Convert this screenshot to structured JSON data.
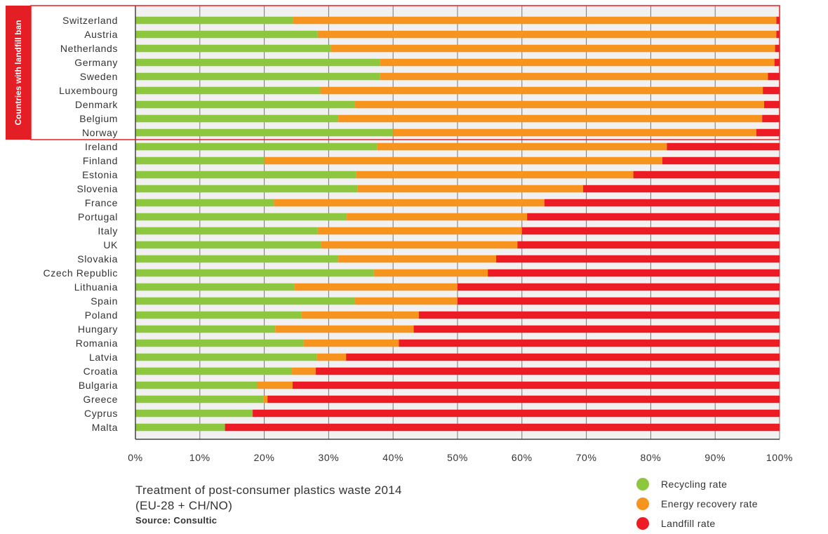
{
  "chart_data": {
    "type": "bar",
    "orientation": "horizontal",
    "stacked": true,
    "title": "Treatment of post-consumer plastics waste 2014",
    "subtitle": "(EU-28 + CH/NO)",
    "source": "Source: Consultic",
    "group_label": "Countries with landfill ban",
    "group_size": 9,
    "xlim": [
      0,
      100
    ],
    "x_ticks": [
      "0%",
      "10%",
      "20%",
      "30%",
      "40%",
      "50%",
      "60%",
      "70%",
      "80%",
      "90%",
      "100%"
    ],
    "grid": true,
    "legend_position": "bottom-right",
    "categories": [
      "Switzerland",
      "Austria",
      "Netherlands",
      "Germany",
      "Sweden",
      "Luxembourg",
      "Denmark",
      "Belgium",
      "Norway",
      "Ireland",
      "Finland",
      "Estonia",
      "Slovenia",
      "France",
      "Portugal",
      "Italy",
      "UK",
      "Slovakia",
      "Czech Republic",
      "Lithuania",
      "Spain",
      "Poland",
      "Hungary",
      "Romania",
      "Latvia",
      "Croatia",
      "Bulgaria",
      "Greece",
      "Cyprus",
      "Malta"
    ],
    "series": [
      {
        "name": "Recycling rate",
        "color": "#8dc63f",
        "values": [
          24.5,
          28.3,
          30.3,
          38,
          38,
          28.7,
          34,
          31.5,
          40,
          37.5,
          20,
          34.3,
          34.5,
          21.5,
          32.8,
          28.3,
          28.8,
          31.5,
          37,
          24.7,
          34,
          25.8,
          21.7,
          26.1,
          28.2,
          24.3,
          18.9,
          19.9,
          18.2,
          13.9
        ]
      },
      {
        "name": "Energy recovery rate",
        "color": "#f7941d",
        "values": [
          75,
          71.2,
          69,
          61.2,
          60.2,
          68.7,
          63.6,
          65.8,
          56.4,
          45,
          61.8,
          43,
          35,
          42,
          28,
          31.7,
          30.5,
          24.5,
          17.7,
          25.3,
          16,
          18.2,
          21.5,
          14.8,
          4.5,
          3.7,
          5.5,
          0.6,
          0,
          0
        ]
      },
      {
        "name": "Landfill rate",
        "color": "#ed1c24",
        "values": [
          0.5,
          0.5,
          0.7,
          0.8,
          1.8,
          2.6,
          2.4,
          2.7,
          3.6,
          17.5,
          18.2,
          22.7,
          30.5,
          36.5,
          39.2,
          40,
          40.7,
          44,
          45.3,
          50,
          50,
          56,
          56.8,
          59.1,
          67.3,
          72,
          75.6,
          79.5,
          81.8,
          86.1
        ]
      }
    ]
  }
}
